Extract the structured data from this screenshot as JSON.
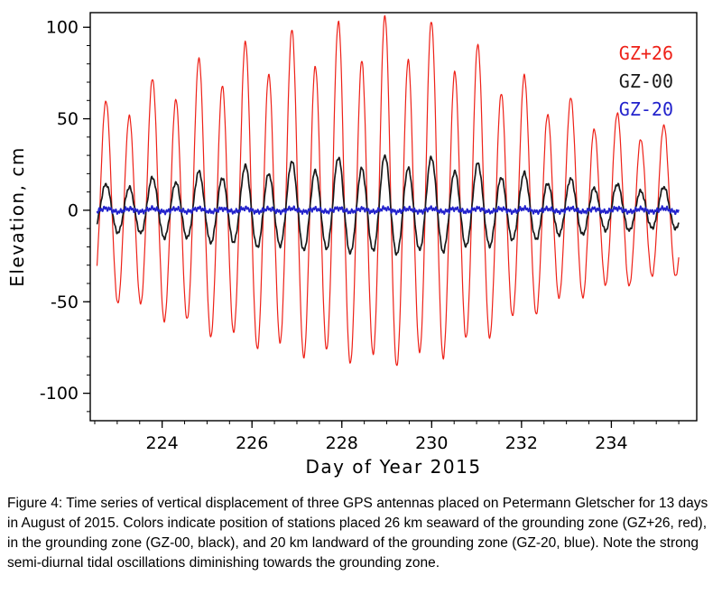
{
  "figure": {
    "caption": "Figure 4: Time series of vertical displacement of three GPS antennas placed on Petermann Gletscher for 13 days in August of 2015. Colors indicate position of stations placed 26 km seaward of the grounding zone (GZ+26, red), in the grounding zone (GZ-00, black), and 20 km landward of the grounding zone (GZ-20, blue). Note the strong semi-diurnal tidal oscillations diminishing towards the grounding zone."
  },
  "chart_data": {
    "type": "line",
    "title": "",
    "xlabel": "Day of Year 2015",
    "ylabel": "Elevation, cm",
    "xlim": [
      222.4,
      235.9
    ],
    "ylim": [
      -115,
      108
    ],
    "xticks": [
      224,
      226,
      228,
      230,
      232,
      234
    ],
    "x_minor_step": 0.5,
    "yticks": [
      -100,
      -50,
      0,
      50,
      100
    ],
    "y_minor_step": 10,
    "grid": false,
    "legend_position": "top-right-inside",
    "tide": {
      "period_days": 0.5175,
      "first_peak_day": 222.75,
      "diurnal_fraction": 0.12,
      "negative_scale": 0.87,
      "t_start": 222.55,
      "t_end": 235.5,
      "sample_step_days": 0.01
    },
    "series": [
      {
        "name": "GZ+26",
        "color": "#ee2118",
        "line_width": 1.2,
        "noise_amp": 0.8,
        "envelope_x": [
          222.5,
          224,
          225,
          226,
          227,
          228,
          229,
          230,
          231,
          232,
          233,
          234,
          235,
          235.5
        ],
        "envelope_amp": [
          55,
          72,
          82,
          90,
          96,
          100,
          103,
          100,
          88,
          72,
          60,
          52,
          46,
          43
        ]
      },
      {
        "name": "GZ-00",
        "color": "#1a1a1a",
        "line_width": 1.7,
        "noise_amp": 1.1,
        "envelope_x": [
          222.5,
          224,
          225,
          226,
          227,
          228,
          229,
          230,
          231,
          232,
          233,
          234,
          235,
          235.5
        ],
        "envelope_amp": [
          13,
          18,
          21,
          24,
          26,
          28,
          29,
          28,
          25,
          20,
          17,
          14,
          12.5,
          12
        ]
      },
      {
        "name": "GZ-20",
        "color": "#2222cc",
        "line_width": 1.7,
        "noise_amp": 1.5,
        "envelope_x": [
          222.5,
          235.5
        ],
        "envelope_amp": [
          1.0,
          1.0
        ]
      }
    ]
  }
}
